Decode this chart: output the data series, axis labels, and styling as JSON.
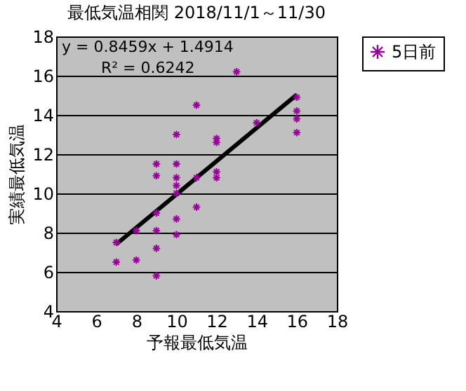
{
  "chart_data": {
    "type": "scatter",
    "title": "最低気温相関 2018/11/1～11/30",
    "xlabel": "予報最低気温",
    "ylabel": "実績最低気温",
    "xlim": [
      4,
      18
    ],
    "ylim": [
      4,
      18
    ],
    "xticks": [
      4,
      6,
      8,
      10,
      12,
      14,
      16,
      18
    ],
    "yticks": [
      4,
      6,
      8,
      10,
      12,
      14,
      16,
      18
    ],
    "grid": "y",
    "legend": "right",
    "annotations": [
      "y = 0.8459x + 1.4914",
      "R² = 0.6242"
    ],
    "series": [
      {
        "name": "5日前",
        "color": "#990099",
        "marker": "cross",
        "x": [
          7,
          7,
          8,
          8,
          9,
          9,
          9,
          9,
          9,
          9,
          10,
          10,
          10,
          10,
          10,
          10,
          10,
          11,
          11,
          11,
          12,
          12,
          12,
          12,
          13,
          14,
          16,
          16,
          16,
          16
        ],
        "values": [
          7.5,
          6.5,
          8.1,
          6.6,
          11.5,
          10.9,
          9.0,
          8.1,
          7.2,
          5.8,
          13.0,
          11.5,
          10.8,
          10.4,
          10.0,
          8.7,
          7.9,
          14.5,
          10.8,
          9.3,
          12.8,
          12.6,
          11.1,
          10.8,
          16.2,
          13.6,
          14.9,
          14.2,
          13.8,
          13.1
        ]
      },
      {
        "type": "line",
        "color": "#000000",
        "x": [
          7,
          16
        ],
        "values": [
          7.41,
          15.03
        ]
      }
    ]
  }
}
